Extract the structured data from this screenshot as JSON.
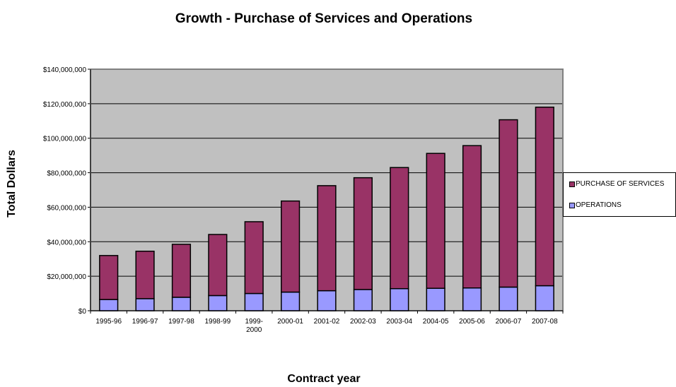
{
  "chart_data": {
    "type": "bar",
    "stacked": true,
    "title": "Growth - Purchase of Services and Operations",
    "xlabel": "Contract year",
    "ylabel": "Total Dollars",
    "categories": [
      "1995-96",
      "1996-97",
      "1997-98",
      "1998-99",
      "1999-2000",
      "2000-01",
      "2001-02",
      "2002-03",
      "2003-04",
      "2004-05",
      "2005-06",
      "2006-07",
      "2007-08"
    ],
    "category_labels": [
      [
        "1995-96"
      ],
      [
        "1996-97"
      ],
      [
        "1997-98"
      ],
      [
        "1998-99"
      ],
      [
        "1999-",
        "2000"
      ],
      [
        "2000-01"
      ],
      [
        "2001-02"
      ],
      [
        "2002-03"
      ],
      [
        "2003-04"
      ],
      [
        "2004-05"
      ],
      [
        "2005-06"
      ],
      [
        "2006-07"
      ],
      [
        "2007-08"
      ]
    ],
    "series": [
      {
        "name": "OPERATIONS",
        "color": "#9999ff",
        "values": [
          6500000,
          7000000,
          7800000,
          8800000,
          10000000,
          10800000,
          11600000,
          12300000,
          12800000,
          13000000,
          13200000,
          13700000,
          14500000
        ]
      },
      {
        "name": "PURCHASE OF SERVICES",
        "color": "#993366",
        "values": [
          25500000,
          27500000,
          30700000,
          35400000,
          41600000,
          52800000,
          60900000,
          64800000,
          70200000,
          78200000,
          82500000,
          97000000,
          103500000
        ]
      }
    ],
    "ylim": [
      0,
      140000000
    ],
    "yticks": [
      0,
      20000000,
      40000000,
      60000000,
      80000000,
      100000000,
      120000000,
      140000000
    ],
    "ytick_labels": [
      "$0",
      "$20,000,000",
      "$40,000,000",
      "$60,000,000",
      "$80,000,000",
      "$100,000,000",
      "$120,000,000",
      "$140,000,000"
    ],
    "grid": true,
    "plot_background": "#c0c0c0",
    "legend_position": "right",
    "legend_order": [
      "PURCHASE OF SERVICES",
      "OPERATIONS"
    ]
  }
}
